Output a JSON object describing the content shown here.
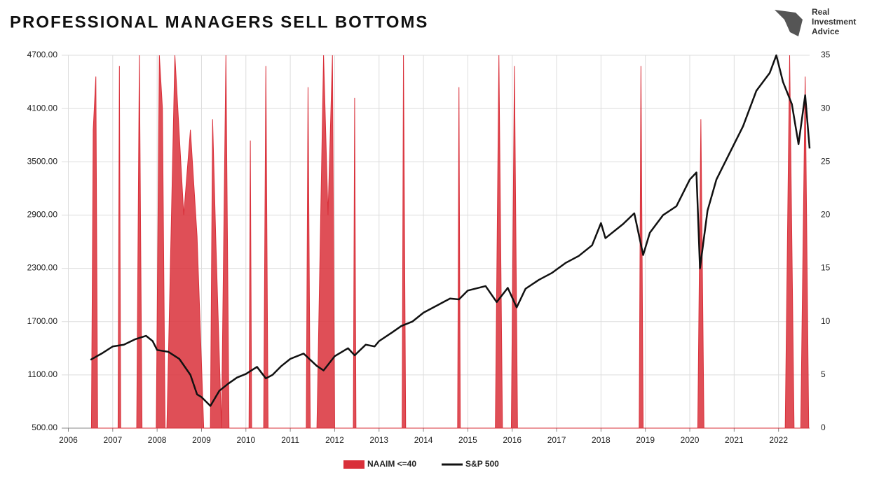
{
  "brand": [
    "Real",
    "Investment",
    "Advice"
  ],
  "chart_data": {
    "type": "line",
    "title": "PROFESSIONAL MANAGERS SELL BOTTOMS",
    "xlim": [
      2005.85,
      2022.7
    ],
    "xticks": [
      2006,
      2007,
      2008,
      2009,
      2010,
      2011,
      2012,
      2013,
      2014,
      2015,
      2016,
      2017,
      2018,
      2019,
      2020,
      2021,
      2022
    ],
    "ylim": [
      500,
      4700
    ],
    "yticks": [
      {
        "value": 500,
        "label": "500.00"
      },
      {
        "value": 1100,
        "label": "1100.00"
      },
      {
        "value": 1700,
        "label": "1700.00"
      },
      {
        "value": 2300,
        "label": "2300.00"
      },
      {
        "value": 2900,
        "label": "2900.00"
      },
      {
        "value": 3500,
        "label": "3500.00"
      },
      {
        "value": 4100,
        "label": "4100.00"
      },
      {
        "value": 4700,
        "label": "4700.00"
      }
    ],
    "y2lim": [
      0,
      35
    ],
    "y2ticks": [
      0,
      5,
      10,
      15,
      20,
      25,
      30,
      35
    ],
    "grid": true,
    "legend": "bottom",
    "series": [
      {
        "name": "NAAIM <=40",
        "color": "#d9303a",
        "type": "area",
        "axis": "y2",
        "x": [
          2006.52,
          2006.56,
          2006.62,
          2006.66,
          2007.12,
          2007.15,
          2007.18,
          2007.54,
          2007.6,
          2007.66,
          2007.98,
          2008.05,
          2008.12,
          2008.18,
          2008.22,
          2008.4,
          2008.6,
          2008.75,
          2008.9,
          2009.05,
          2009.2,
          2009.25,
          2009.32,
          2009.45,
          2009.55,
          2009.62,
          2010.07,
          2010.1,
          2010.13,
          2010.4,
          2010.45,
          2010.5,
          2011.36,
          2011.4,
          2011.45,
          2011.6,
          2011.75,
          2011.85,
          2011.95,
          2012.0,
          2012.42,
          2012.45,
          2012.48,
          2013.52,
          2013.55,
          2013.6,
          2014.77,
          2014.8,
          2014.83,
          2015.62,
          2015.7,
          2015.78,
          2015.98,
          2016.05,
          2016.12,
          2018.86,
          2018.9,
          2018.95,
          2020.18,
          2020.25,
          2020.32,
          2022.15,
          2022.25,
          2022.35,
          2022.5,
          2022.6,
          2022.68
        ],
        "values": [
          0,
          28,
          33,
          0,
          0,
          34,
          0,
          0,
          35,
          0,
          0,
          35,
          30,
          0,
          0,
          35,
          20,
          28,
          18,
          0,
          0,
          29,
          18,
          0,
          35,
          0,
          0,
          27,
          0,
          0,
          34,
          0,
          0,
          32,
          0,
          0,
          35,
          20,
          35,
          0,
          0,
          31,
          0,
          0,
          35,
          0,
          0,
          32,
          0,
          0,
          35,
          0,
          0,
          34,
          0,
          0,
          34,
          0,
          0,
          29,
          0,
          0,
          35,
          0,
          0,
          33,
          0
        ]
      },
      {
        "name": "S&P 500",
        "color": "#111111",
        "type": "line",
        "x": [
          2006.5,
          2006.75,
          2007.0,
          2007.25,
          2007.5,
          2007.75,
          2007.9,
          2008.0,
          2008.25,
          2008.5,
          2008.75,
          2008.9,
          2009.0,
          2009.2,
          2009.4,
          2009.6,
          2009.8,
          2010.0,
          2010.25,
          2010.45,
          2010.6,
          2010.8,
          2011.0,
          2011.3,
          2011.6,
          2011.75,
          2012.0,
          2012.3,
          2012.45,
          2012.7,
          2012.9,
          2013.0,
          2013.3,
          2013.5,
          2013.75,
          2014.0,
          2014.3,
          2014.6,
          2014.8,
          2015.0,
          2015.4,
          2015.65,
          2015.9,
          2016.1,
          2016.3,
          2016.6,
          2016.9,
          2017.2,
          2017.5,
          2017.8,
          2018.0,
          2018.1,
          2018.5,
          2018.75,
          2018.95,
          2019.1,
          2019.4,
          2019.7,
          2020.0,
          2020.15,
          2020.23,
          2020.4,
          2020.6,
          2020.9,
          2021.2,
          2021.5,
          2021.8,
          2021.95,
          2022.1,
          2022.3,
          2022.45,
          2022.6,
          2022.7
        ],
        "values": [
          1270,
          1340,
          1420,
          1440,
          1500,
          1540,
          1480,
          1380,
          1360,
          1280,
          1100,
          880,
          850,
          750,
          920,
          1000,
          1070,
          1110,
          1190,
          1060,
          1100,
          1200,
          1280,
          1340,
          1200,
          1150,
          1310,
          1400,
          1320,
          1440,
          1420,
          1480,
          1580,
          1650,
          1700,
          1800,
          1880,
          1960,
          1950,
          2050,
          2100,
          1920,
          2080,
          1860,
          2070,
          2170,
          2250,
          2360,
          2440,
          2560,
          2810,
          2640,
          2800,
          2920,
          2450,
          2700,
          2900,
          3000,
          3300,
          3380,
          2300,
          2950,
          3300,
          3600,
          3900,
          4300,
          4500,
          4700,
          4400,
          4150,
          3700,
          4250,
          3650
        ]
      }
    ]
  }
}
